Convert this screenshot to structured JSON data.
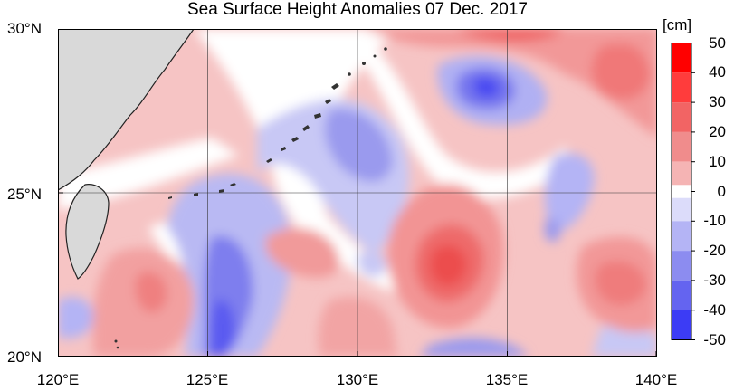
{
  "title": "Sea Surface Height Anomalies  07 Dec. 2017",
  "map": {
    "lat_labels": [
      "30°N",
      "25°N",
      "20°N"
    ],
    "lon_labels": [
      "120°E",
      "125°E",
      "130°E",
      "135°E",
      "140°E"
    ],
    "extent": {
      "lon": [
        120,
        140
      ],
      "lat": [
        20,
        30
      ]
    },
    "land_color": "#d9d9d9",
    "coast_color": "#222222"
  },
  "colorbar": {
    "unit": "[cm]",
    "ticks": [
      "50",
      "40",
      "30",
      "20",
      "10",
      "0",
      "-10",
      "-20",
      "-30",
      "-40",
      "-50"
    ],
    "colors_top_to_bottom": [
      "#ff0000",
      "#ff3c3c",
      "#f26464",
      "#f08c8c",
      "#f5b4b4",
      "#fadcdc",
      "#ffffff",
      "#dcdcfa",
      "#b4b4f5",
      "#8c8cf0",
      "#6464f0",
      "#3c3cf5",
      "#0000ff"
    ]
  }
}
